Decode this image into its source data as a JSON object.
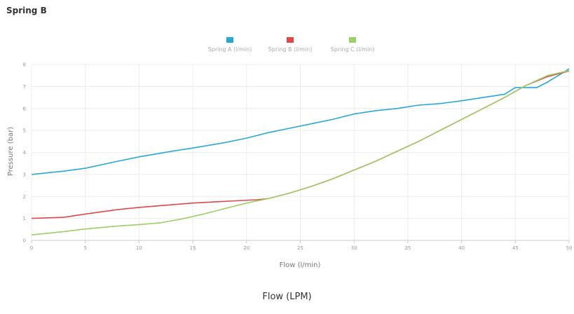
{
  "page": {
    "title": "Spring B",
    "bottom_label": "Flow (LPM)"
  },
  "chart_data": {
    "type": "line",
    "xlabel": "Flow (l/min)",
    "ylabel": "Pressure (bar)",
    "xlim": [
      0,
      50
    ],
    "ylim": [
      0,
      8
    ],
    "x_ticks": [
      "0",
      "5",
      "10",
      "15",
      "20",
      "25",
      "30",
      "35",
      "40",
      "45",
      "50"
    ],
    "y_ticks": [
      "0",
      "1",
      "2",
      "3",
      "4",
      "5",
      "6",
      "7",
      "8"
    ],
    "grid": true,
    "legend_position": "top-center",
    "series": [
      {
        "name": "Spring A (l/min)",
        "color": "#29a8d8",
        "points": [
          [
            0,
            3.0
          ],
          [
            2,
            3.1
          ],
          [
            3,
            3.15
          ],
          [
            5,
            3.28
          ],
          [
            8,
            3.6
          ],
          [
            10,
            3.8
          ],
          [
            13,
            4.05
          ],
          [
            15,
            4.2
          ],
          [
            18,
            4.45
          ],
          [
            20,
            4.65
          ],
          [
            22,
            4.9
          ],
          [
            24,
            5.1
          ],
          [
            26,
            5.3
          ],
          [
            28,
            5.5
          ],
          [
            30,
            5.75
          ],
          [
            32,
            5.9
          ],
          [
            34,
            6.0
          ],
          [
            36,
            6.15
          ],
          [
            38,
            6.22
          ],
          [
            40,
            6.35
          ],
          [
            42,
            6.5
          ],
          [
            44,
            6.65
          ],
          [
            45,
            6.95
          ],
          [
            47,
            6.95
          ],
          [
            48,
            7.2
          ],
          [
            50,
            7.8
          ]
        ]
      },
      {
        "name": "Spring B (l/min)",
        "color": "#e0484b",
        "points": [
          [
            0,
            1.0
          ],
          [
            3,
            1.05
          ],
          [
            5,
            1.2
          ],
          [
            8,
            1.4
          ],
          [
            10,
            1.5
          ],
          [
            13,
            1.62
          ],
          [
            15,
            1.7
          ],
          [
            17,
            1.75
          ],
          [
            19,
            1.8
          ],
          [
            21,
            1.85
          ],
          [
            22,
            1.9
          ],
          [
            24,
            2.15
          ],
          [
            26,
            2.45
          ],
          [
            28,
            2.8
          ],
          [
            30,
            3.2
          ],
          [
            32,
            3.6
          ],
          [
            34,
            4.05
          ],
          [
            36,
            4.5
          ],
          [
            38,
            5.0
          ],
          [
            40,
            5.5
          ],
          [
            42,
            6.0
          ],
          [
            44,
            6.5
          ],
          [
            46,
            7.05
          ],
          [
            48,
            7.45
          ],
          [
            50,
            7.7
          ]
        ]
      },
      {
        "name": "Spring C (l/min)",
        "color": "#9ccf66",
        "points": [
          [
            0,
            0.25
          ],
          [
            3,
            0.4
          ],
          [
            5,
            0.52
          ],
          [
            8,
            0.65
          ],
          [
            10,
            0.72
          ],
          [
            12,
            0.8
          ],
          [
            14,
            0.98
          ],
          [
            16,
            1.2
          ],
          [
            18,
            1.45
          ],
          [
            20,
            1.7
          ],
          [
            22,
            1.9
          ],
          [
            24,
            2.15
          ],
          [
            26,
            2.45
          ],
          [
            28,
            2.8
          ],
          [
            30,
            3.2
          ],
          [
            32,
            3.6
          ],
          [
            34,
            4.05
          ],
          [
            36,
            4.5
          ],
          [
            38,
            5.0
          ],
          [
            40,
            5.5
          ],
          [
            42,
            6.0
          ],
          [
            44,
            6.5
          ],
          [
            46,
            7.05
          ],
          [
            48,
            7.5
          ],
          [
            50,
            7.72
          ]
        ]
      }
    ]
  }
}
